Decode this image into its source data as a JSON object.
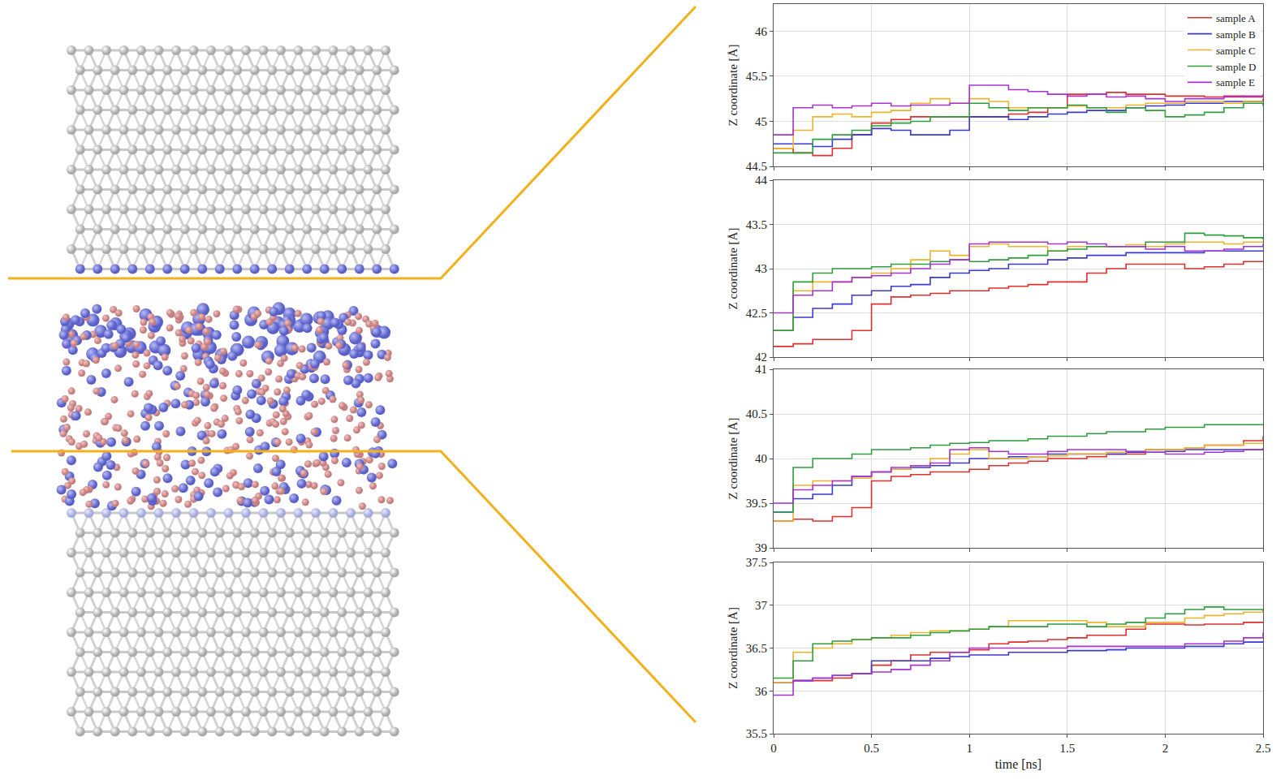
{
  "chart_data": [
    {
      "type": "line",
      "grid": true,
      "legend": "upper right",
      "tick_labels": "y",
      "y_label": "Z coordinate [Å]",
      "xlim": [
        0,
        2.5
      ],
      "xticks": [
        0,
        0.5,
        1,
        1.5,
        2,
        2.5
      ],
      "ylim": [
        44.5,
        46.3
      ],
      "yticks": [
        44.5,
        45,
        45.5,
        46
      ],
      "x": [
        0,
        0.1,
        0.2,
        0.3,
        0.4,
        0.5,
        0.6,
        0.7,
        0.8,
        0.9,
        1.0,
        1.1,
        1.2,
        1.3,
        1.4,
        1.5,
        1.6,
        1.7,
        1.8,
        1.9,
        2.0,
        2.1,
        2.2,
        2.3,
        2.4,
        2.5
      ],
      "series": [
        {
          "name": "sample A",
          "color": "#e02f2f",
          "values": [
            44.7,
            44.65,
            44.62,
            44.7,
            44.85,
            44.98,
            45.02,
            45.05,
            45.05,
            45.05,
            45.05,
            45.05,
            45.08,
            45.1,
            45.15,
            45.3,
            45.3,
            45.32,
            45.3,
            45.3,
            45.28,
            45.28,
            45.27,
            45.28,
            45.27,
            45.3
          ]
        },
        {
          "name": "sample B",
          "color": "#3a3ad0",
          "values": [
            44.75,
            44.75,
            44.72,
            44.8,
            44.85,
            44.92,
            44.9,
            44.85,
            44.85,
            44.9,
            45.05,
            45.05,
            45.02,
            45.05,
            45.08,
            45.1,
            45.12,
            45.12,
            45.15,
            45.17,
            45.18,
            45.2,
            45.2,
            45.22,
            45.22,
            45.25
          ]
        },
        {
          "name": "sample C",
          "color": "#f0b32a",
          "values": [
            44.7,
            44.9,
            45.05,
            45.08,
            45.05,
            45.1,
            45.12,
            45.2,
            45.25,
            45.2,
            45.25,
            45.22,
            45.15,
            45.15,
            45.15,
            45.17,
            45.15,
            45.15,
            45.18,
            45.2,
            45.2,
            45.22,
            45.22,
            45.2,
            45.22,
            45.22
          ]
        },
        {
          "name": "sample D",
          "color": "#2e9e3e",
          "values": [
            44.65,
            44.65,
            44.8,
            44.85,
            44.9,
            44.95,
            44.98,
            45.0,
            45.05,
            45.05,
            45.2,
            45.15,
            45.12,
            45.15,
            45.15,
            45.18,
            45.15,
            45.1,
            45.15,
            45.12,
            45.05,
            45.07,
            45.1,
            45.15,
            45.2,
            45.17
          ]
        },
        {
          "name": "sample E",
          "color": "#a633d4",
          "values": [
            44.85,
            45.15,
            45.18,
            45.15,
            45.17,
            45.2,
            45.17,
            45.18,
            45.18,
            45.2,
            45.4,
            45.4,
            45.35,
            45.33,
            45.3,
            45.28,
            45.3,
            45.27,
            45.28,
            45.25,
            45.22,
            45.25,
            45.25,
            45.27,
            45.28,
            45.28
          ]
        }
      ]
    },
    {
      "type": "line",
      "grid": true,
      "tick_labels": "y",
      "y_label": "Z coordinate [Å]",
      "xlim": [
        0,
        2.5
      ],
      "xticks": [
        0,
        0.5,
        1,
        1.5,
        2,
        2.5
      ],
      "ylim": [
        42,
        44
      ],
      "yticks": [
        42,
        42.5,
        43,
        43.5,
        44
      ],
      "x": [
        0,
        0.1,
        0.2,
        0.3,
        0.4,
        0.5,
        0.6,
        0.7,
        0.8,
        0.9,
        1.0,
        1.1,
        1.2,
        1.3,
        1.4,
        1.5,
        1.6,
        1.7,
        1.8,
        1.9,
        2.0,
        2.1,
        2.2,
        2.3,
        2.4,
        2.5
      ],
      "series": [
        {
          "name": "sample A",
          "color": "#e02f2f",
          "values": [
            42.12,
            42.15,
            42.2,
            42.2,
            42.3,
            42.6,
            42.68,
            42.7,
            42.72,
            42.75,
            42.75,
            42.78,
            42.8,
            42.82,
            42.85,
            42.85,
            42.95,
            43.0,
            43.05,
            43.05,
            43.05,
            43.0,
            43.02,
            43.05,
            43.08,
            43.08
          ]
        },
        {
          "name": "sample B",
          "color": "#3a3ad0",
          "values": [
            42.3,
            42.45,
            42.55,
            42.6,
            42.7,
            42.75,
            42.8,
            42.82,
            42.9,
            42.95,
            42.98,
            43.0,
            43.05,
            43.05,
            43.1,
            43.12,
            43.15,
            43.15,
            43.18,
            43.18,
            43.18,
            43.18,
            43.2,
            43.2,
            43.2,
            43.2
          ]
        },
        {
          "name": "sample C",
          "color": "#f0b32a",
          "values": [
            42.3,
            42.75,
            42.85,
            42.85,
            42.9,
            42.95,
            43.0,
            43.1,
            43.2,
            43.15,
            43.25,
            43.28,
            43.25,
            43.25,
            43.2,
            43.25,
            43.25,
            43.25,
            43.27,
            43.25,
            43.28,
            43.3,
            43.3,
            43.28,
            43.3,
            43.3
          ]
        },
        {
          "name": "sample D",
          "color": "#2e9e3e",
          "values": [
            42.3,
            42.85,
            42.95,
            43.0,
            43.0,
            43.02,
            43.05,
            43.05,
            43.08,
            43.1,
            43.08,
            43.1,
            43.12,
            43.15,
            43.2,
            43.22,
            43.25,
            43.25,
            43.25,
            43.3,
            43.3,
            43.4,
            43.38,
            43.37,
            43.35,
            43.33
          ]
        },
        {
          "name": "sample E",
          "color": "#a633d4",
          "values": [
            42.5,
            42.7,
            42.75,
            42.85,
            42.9,
            42.92,
            42.95,
            43.0,
            43.05,
            43.1,
            43.28,
            43.3,
            43.3,
            43.3,
            43.28,
            43.3,
            43.28,
            43.25,
            43.25,
            43.22,
            43.25,
            43.2,
            43.2,
            43.22,
            43.25,
            43.28
          ]
        }
      ]
    },
    {
      "type": "line",
      "grid": true,
      "tick_labels": "y",
      "y_label": "Z coordinate [Å]",
      "xlim": [
        0,
        2.5
      ],
      "xticks": [
        0,
        0.5,
        1,
        1.5,
        2,
        2.5
      ],
      "ylim": [
        39,
        41
      ],
      "yticks": [
        39,
        39.5,
        40,
        40.5,
        41
      ],
      "x": [
        0,
        0.1,
        0.2,
        0.3,
        0.4,
        0.5,
        0.6,
        0.7,
        0.8,
        0.9,
        1.0,
        1.1,
        1.2,
        1.3,
        1.4,
        1.5,
        1.6,
        1.7,
        1.8,
        1.9,
        2.0,
        2.1,
        2.2,
        2.3,
        2.4,
        2.5
      ],
      "series": [
        {
          "name": "sample A",
          "color": "#e02f2f",
          "values": [
            39.3,
            39.32,
            39.3,
            39.35,
            39.45,
            39.75,
            39.8,
            39.82,
            39.85,
            39.85,
            39.88,
            39.92,
            39.95,
            39.97,
            40.0,
            40.0,
            40.02,
            40.05,
            40.05,
            40.1,
            40.1,
            40.12,
            40.15,
            40.15,
            40.2,
            40.25
          ]
        },
        {
          "name": "sample B",
          "color": "#3a3ad0",
          "values": [
            39.4,
            39.55,
            39.6,
            39.7,
            39.8,
            39.85,
            39.88,
            39.9,
            39.92,
            39.95,
            40.0,
            40.0,
            40.02,
            40.02,
            40.05,
            40.05,
            40.05,
            40.05,
            40.07,
            40.07,
            40.08,
            40.1,
            40.1,
            40.1,
            40.1,
            40.1
          ]
        },
        {
          "name": "sample C",
          "color": "#f0b32a",
          "values": [
            39.3,
            39.7,
            39.75,
            39.75,
            39.78,
            39.85,
            39.88,
            39.92,
            40.0,
            40.05,
            40.1,
            40.0,
            40.0,
            40.02,
            40.03,
            40.05,
            40.05,
            40.07,
            40.08,
            40.1,
            40.1,
            40.12,
            40.15,
            40.15,
            40.17,
            40.17
          ]
        },
        {
          "name": "sample D",
          "color": "#2e9e3e",
          "values": [
            39.4,
            39.9,
            40.0,
            40.0,
            40.05,
            40.1,
            40.1,
            40.12,
            40.15,
            40.17,
            40.18,
            40.2,
            40.2,
            40.22,
            40.25,
            40.25,
            40.28,
            40.3,
            40.3,
            40.33,
            40.35,
            40.35,
            40.38,
            40.38,
            40.38,
            40.37
          ]
        },
        {
          "name": "sample E",
          "color": "#a633d4",
          "values": [
            39.5,
            39.65,
            39.7,
            39.75,
            39.8,
            39.85,
            39.9,
            39.92,
            39.95,
            40.1,
            40.12,
            40.08,
            40.05,
            40.05,
            40.08,
            40.1,
            40.1,
            40.1,
            40.08,
            40.07,
            40.05,
            40.05,
            40.07,
            40.08,
            40.1,
            40.12
          ]
        }
      ]
    },
    {
      "type": "line",
      "grid": true,
      "y_label": "Z coordinate [Å]",
      "x_label": "time [ns]",
      "xlim": [
        0,
        2.5
      ],
      "xticks": [
        0,
        0.5,
        1,
        1.5,
        2,
        2.5
      ],
      "ylim": [
        35.5,
        37.5
      ],
      "yticks": [
        35.5,
        36,
        36.5,
        37,
        37.5
      ],
      "x": [
        0,
        0.1,
        0.2,
        0.3,
        0.4,
        0.5,
        0.6,
        0.7,
        0.8,
        0.9,
        1.0,
        1.1,
        1.2,
        1.3,
        1.4,
        1.5,
        1.6,
        1.7,
        1.8,
        1.9,
        2.0,
        2.1,
        2.2,
        2.3,
        2.4,
        2.5
      ],
      "series": [
        {
          "name": "sample A",
          "color": "#e02f2f",
          "values": [
            36.1,
            36.12,
            36.12,
            36.15,
            36.2,
            36.3,
            36.35,
            36.42,
            36.45,
            36.45,
            36.48,
            36.55,
            36.57,
            36.58,
            36.6,
            36.62,
            36.65,
            36.65,
            36.72,
            36.78,
            36.78,
            36.77,
            36.78,
            36.78,
            36.8,
            36.8
          ]
        },
        {
          "name": "sample B",
          "color": "#3a3ad0",
          "values": [
            36.1,
            36.12,
            36.15,
            36.18,
            36.2,
            36.35,
            36.35,
            36.35,
            36.38,
            36.4,
            36.42,
            36.42,
            36.45,
            36.45,
            36.45,
            36.47,
            36.47,
            36.48,
            36.5,
            36.5,
            36.5,
            36.52,
            36.52,
            36.55,
            36.57,
            36.58
          ]
        },
        {
          "name": "sample C",
          "color": "#f0b32a",
          "values": [
            36.1,
            36.45,
            36.5,
            36.55,
            36.6,
            36.62,
            36.65,
            36.68,
            36.7,
            36.7,
            36.72,
            36.75,
            36.82,
            36.82,
            36.82,
            36.82,
            36.8,
            36.75,
            36.75,
            36.8,
            36.8,
            36.85,
            36.88,
            36.9,
            36.92,
            36.92
          ]
        },
        {
          "name": "sample D",
          "color": "#2e9e3e",
          "values": [
            36.15,
            36.35,
            36.55,
            36.58,
            36.6,
            36.62,
            36.62,
            36.65,
            36.68,
            36.7,
            36.72,
            36.75,
            36.75,
            36.75,
            36.78,
            36.78,
            36.75,
            36.78,
            36.8,
            36.85,
            36.9,
            36.95,
            36.98,
            36.95,
            36.95,
            36.93
          ]
        },
        {
          "name": "sample E",
          "color": "#a633d4",
          "values": [
            35.95,
            36.12,
            36.15,
            36.18,
            36.2,
            36.22,
            36.25,
            36.3,
            36.35,
            36.45,
            36.5,
            36.5,
            36.5,
            36.5,
            36.5,
            36.52,
            36.52,
            36.52,
            36.52,
            36.52,
            36.52,
            36.55,
            36.55,
            36.58,
            36.62,
            36.68
          ]
        }
      ]
    }
  ]
}
